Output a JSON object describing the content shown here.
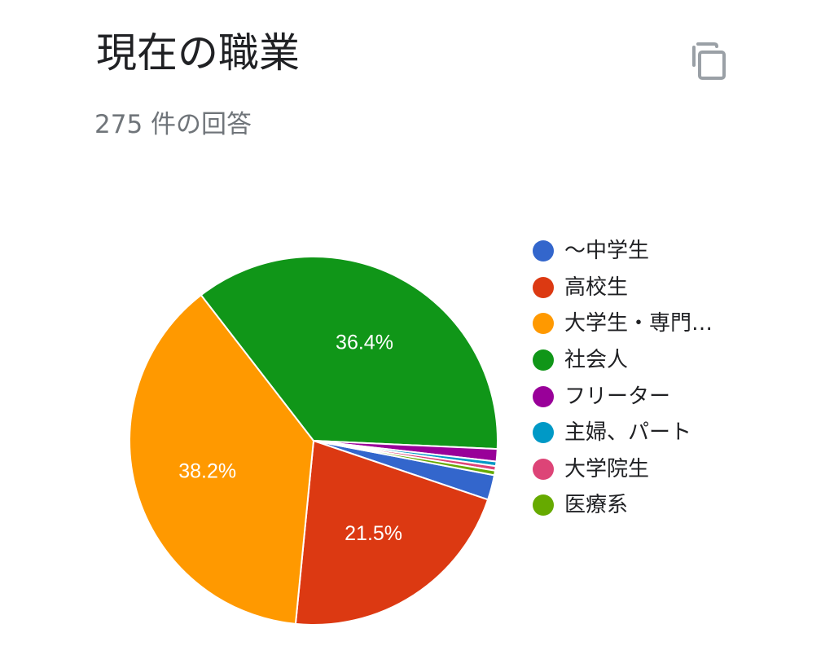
{
  "title": "現在の職業",
  "response_count": "275 件の回答",
  "copy_icon": "copy-icon",
  "colors": {
    "text": "#202124",
    "muted": "#70757a",
    "slice_border": "#ffffff"
  },
  "chart_data": {
    "type": "pie",
    "title": "現在の職業",
    "legend_position": "right",
    "slices": [
      {
        "label": "〜中学生",
        "value": 2.2,
        "color": "#3366cc",
        "label_text": ""
      },
      {
        "label": "高校生",
        "value": 21.5,
        "color": "#dc3912",
        "label_text": "21.5%"
      },
      {
        "label": "大学生・専門…",
        "value": 38.2,
        "color": "#ff9900",
        "label_text": "38.2%"
      },
      {
        "label": "社会人",
        "value": 36.4,
        "color": "#109618",
        "label_text": "36.4%"
      },
      {
        "label": "フリーター",
        "value": 1.1,
        "color": "#990099",
        "label_text": ""
      },
      {
        "label": "主婦、パート",
        "value": 0.4,
        "color": "#0099c6",
        "label_text": ""
      },
      {
        "label": "大学院生",
        "value": 0.4,
        "color": "#dd4477",
        "label_text": ""
      },
      {
        "label": "医療系",
        "value": 0.4,
        "color": "#66aa00",
        "label_text": ""
      }
    ]
  }
}
